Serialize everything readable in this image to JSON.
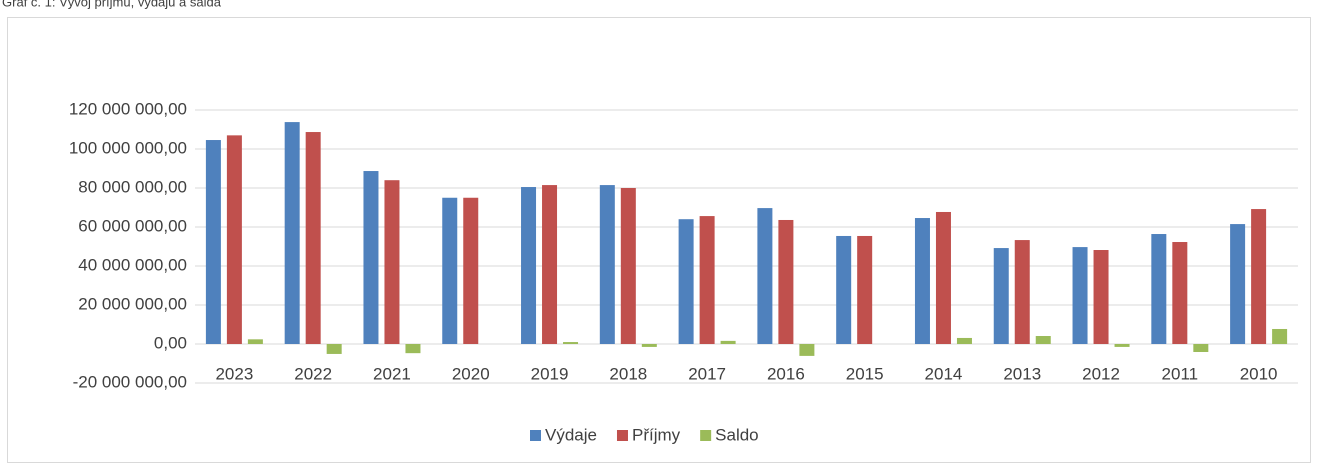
{
  "chart_data": {
    "type": "bar",
    "title": "Graf č. 1: Vývoj příjmů, výdajů a salda",
    "categories": [
      "2023",
      "2022",
      "2021",
      "2020",
      "2019",
      "2018",
      "2017",
      "2016",
      "2015",
      "2014",
      "2013",
      "2012",
      "2011",
      "2010"
    ],
    "series": [
      {
        "name": "Výdaje",
        "color": "#4f81bd",
        "values": [
          104600000,
          113800000,
          88700000,
          75000000,
          80500000,
          81500000,
          64000000,
          69700000,
          55400000,
          64600000,
          49200000,
          49700000,
          56400000,
          61500000
        ]
      },
      {
        "name": "Příjmy",
        "color": "#c0504d",
        "values": [
          107000000,
          108700000,
          84000000,
          75000000,
          81500000,
          80000000,
          65600000,
          63600000,
          55400000,
          67700000,
          53300000,
          48200000,
          52300000,
          69200000
        ]
      },
      {
        "name": "Saldo",
        "color": "#9bbb59",
        "values": [
          2400000,
          -5100000,
          -4700000,
          0,
          1000000,
          -1500000,
          1600000,
          -6100000,
          0,
          3100000,
          4100000,
          -1500000,
          -4100000,
          7700000
        ]
      }
    ],
    "ylim": [
      -20000000,
      120000000
    ],
    "yticks": [
      {
        "value": -20000000,
        "label": "-20 000 000,00"
      },
      {
        "value": 0,
        "label": "0,00"
      },
      {
        "value": 20000000,
        "label": "20 000 000,00"
      },
      {
        "value": 40000000,
        "label": "40 000 000,00"
      },
      {
        "value": 60000000,
        "label": "60 000 000,00"
      },
      {
        "value": 80000000,
        "label": "80 000 000,00"
      },
      {
        "value": 100000000,
        "label": "100 000 000,00"
      },
      {
        "value": 120000000,
        "label": "120 000 000,00"
      }
    ],
    "grid": true,
    "legend": "bottom"
  }
}
